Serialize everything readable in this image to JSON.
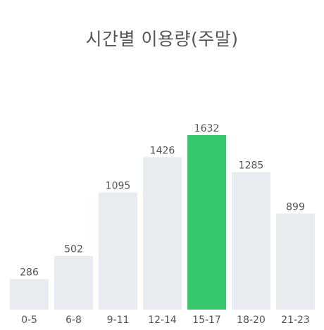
{
  "chart_data": {
    "type": "bar",
    "title": "시간별 이용량(주말)",
    "categories": [
      "0-5",
      "6-8",
      "9-11",
      "12-14",
      "15-17",
      "18-20",
      "21-23"
    ],
    "values": [
      286,
      502,
      1095,
      1426,
      1632,
      1285,
      899
    ],
    "highlight_category": "15-17",
    "xlabel": "",
    "ylabel": "",
    "ylim": [
      0,
      1632
    ],
    "grid": false,
    "legend": "none",
    "colors": {
      "bar": "#e8ecf1",
      "highlight": "#35c76a",
      "text": "#555555"
    }
  }
}
